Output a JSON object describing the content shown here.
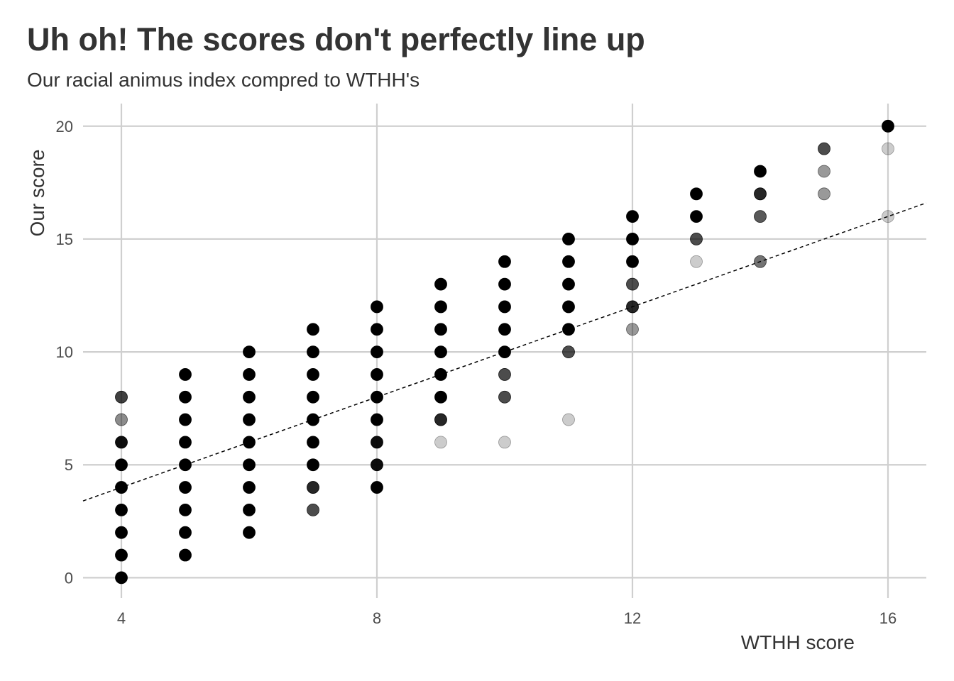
{
  "chart_data": {
    "type": "scatter",
    "title": "Uh oh! The scores don't perfectly line up",
    "subtitle": "Our racial animus index compred to WTHH's",
    "xlabel": "WTHH score",
    "ylabel": "Our score",
    "xlim": [
      3.4,
      16.6
    ],
    "ylim": [
      -0.9,
      21.0
    ],
    "x_ticks": [
      4,
      8,
      12,
      16
    ],
    "y_ticks": [
      0,
      5,
      10,
      15,
      20
    ],
    "grid": true,
    "point_color": "#000000",
    "trend_line": {
      "style": "dashed",
      "color": "#000000",
      "intercept": 0.0,
      "slope": 1.0
    },
    "points": [
      {
        "x": 4,
        "y": 0,
        "a": 1.0
      },
      {
        "x": 4,
        "y": 1,
        "a": 1.0
      },
      {
        "x": 4,
        "y": 2,
        "a": 1.0
      },
      {
        "x": 4,
        "y": 3,
        "a": 1.0
      },
      {
        "x": 4,
        "y": 4,
        "a": 1.0
      },
      {
        "x": 4,
        "y": 5,
        "a": 1.0
      },
      {
        "x": 4,
        "y": 6,
        "a": 0.95
      },
      {
        "x": 4,
        "y": 7,
        "a": 0.45
      },
      {
        "x": 4,
        "y": 8,
        "a": 0.75
      },
      {
        "x": 5,
        "y": 1,
        "a": 1.0
      },
      {
        "x": 5,
        "y": 2,
        "a": 1.0
      },
      {
        "x": 5,
        "y": 3,
        "a": 1.0
      },
      {
        "x": 5,
        "y": 4,
        "a": 1.0
      },
      {
        "x": 5,
        "y": 5,
        "a": 1.0
      },
      {
        "x": 5,
        "y": 6,
        "a": 1.0
      },
      {
        "x": 5,
        "y": 7,
        "a": 1.0
      },
      {
        "x": 5,
        "y": 8,
        "a": 1.0
      },
      {
        "x": 5,
        "y": 9,
        "a": 1.0
      },
      {
        "x": 6,
        "y": 2,
        "a": 1.0
      },
      {
        "x": 6,
        "y": 3,
        "a": 1.0
      },
      {
        "x": 6,
        "y": 4,
        "a": 1.0
      },
      {
        "x": 6,
        "y": 5,
        "a": 1.0
      },
      {
        "x": 6,
        "y": 6,
        "a": 1.0
      },
      {
        "x": 6,
        "y": 7,
        "a": 1.0
      },
      {
        "x": 6,
        "y": 8,
        "a": 1.0
      },
      {
        "x": 6,
        "y": 9,
        "a": 1.0
      },
      {
        "x": 6,
        "y": 10,
        "a": 1.0
      },
      {
        "x": 7,
        "y": 3,
        "a": 0.7
      },
      {
        "x": 7,
        "y": 4,
        "a": 0.85
      },
      {
        "x": 7,
        "y": 5,
        "a": 1.0
      },
      {
        "x": 7,
        "y": 6,
        "a": 1.0
      },
      {
        "x": 7,
        "y": 7,
        "a": 1.0
      },
      {
        "x": 7,
        "y": 8,
        "a": 1.0
      },
      {
        "x": 7,
        "y": 9,
        "a": 1.0
      },
      {
        "x": 7,
        "y": 10,
        "a": 1.0
      },
      {
        "x": 7,
        "y": 11,
        "a": 1.0
      },
      {
        "x": 8,
        "y": 4,
        "a": 1.0
      },
      {
        "x": 8,
        "y": 5,
        "a": 0.95
      },
      {
        "x": 8,
        "y": 6,
        "a": 0.95
      },
      {
        "x": 8,
        "y": 7,
        "a": 1.0
      },
      {
        "x": 8,
        "y": 8,
        "a": 1.0
      },
      {
        "x": 8,
        "y": 9,
        "a": 1.0
      },
      {
        "x": 8,
        "y": 10,
        "a": 1.0
      },
      {
        "x": 8,
        "y": 11,
        "a": 1.0
      },
      {
        "x": 8,
        "y": 12,
        "a": 1.0
      },
      {
        "x": 9,
        "y": 6,
        "a": 0.2
      },
      {
        "x": 9,
        "y": 7,
        "a": 0.85
      },
      {
        "x": 9,
        "y": 8,
        "a": 1.0
      },
      {
        "x": 9,
        "y": 9,
        "a": 1.0
      },
      {
        "x": 9,
        "y": 10,
        "a": 1.0
      },
      {
        "x": 9,
        "y": 11,
        "a": 1.0
      },
      {
        "x": 9,
        "y": 12,
        "a": 1.0
      },
      {
        "x": 9,
        "y": 13,
        "a": 1.0
      },
      {
        "x": 10,
        "y": 6,
        "a": 0.2
      },
      {
        "x": 10,
        "y": 8,
        "a": 0.7
      },
      {
        "x": 10,
        "y": 9,
        "a": 0.7
      },
      {
        "x": 10,
        "y": 10,
        "a": 1.0
      },
      {
        "x": 10,
        "y": 11,
        "a": 1.0
      },
      {
        "x": 10,
        "y": 12,
        "a": 1.0
      },
      {
        "x": 10,
        "y": 13,
        "a": 1.0
      },
      {
        "x": 10,
        "y": 14,
        "a": 1.0
      },
      {
        "x": 11,
        "y": 7,
        "a": 0.2
      },
      {
        "x": 11,
        "y": 10,
        "a": 0.7
      },
      {
        "x": 11,
        "y": 11,
        "a": 1.0
      },
      {
        "x": 11,
        "y": 12,
        "a": 1.0
      },
      {
        "x": 11,
        "y": 13,
        "a": 1.0
      },
      {
        "x": 11,
        "y": 14,
        "a": 1.0
      },
      {
        "x": 11,
        "y": 15,
        "a": 1.0
      },
      {
        "x": 12,
        "y": 11,
        "a": 0.4
      },
      {
        "x": 12,
        "y": 12,
        "a": 0.85
      },
      {
        "x": 12,
        "y": 13,
        "a": 0.7
      },
      {
        "x": 12,
        "y": 14,
        "a": 1.0
      },
      {
        "x": 12,
        "y": 15,
        "a": 1.0
      },
      {
        "x": 12,
        "y": 16,
        "a": 1.0
      },
      {
        "x": 13,
        "y": 14,
        "a": 0.2
      },
      {
        "x": 13,
        "y": 15,
        "a": 0.7
      },
      {
        "x": 13,
        "y": 16,
        "a": 1.0
      },
      {
        "x": 13,
        "y": 17,
        "a": 1.0
      },
      {
        "x": 14,
        "y": 14,
        "a": 0.55
      },
      {
        "x": 14,
        "y": 16,
        "a": 0.65
      },
      {
        "x": 14,
        "y": 17,
        "a": 0.85
      },
      {
        "x": 14,
        "y": 18,
        "a": 1.0
      },
      {
        "x": 15,
        "y": 17,
        "a": 0.4
      },
      {
        "x": 15,
        "y": 18,
        "a": 0.4
      },
      {
        "x": 15,
        "y": 19,
        "a": 0.7
      },
      {
        "x": 16,
        "y": 16,
        "a": 0.2
      },
      {
        "x": 16,
        "y": 19,
        "a": 0.2
      },
      {
        "x": 16,
        "y": 20,
        "a": 1.0
      }
    ]
  }
}
